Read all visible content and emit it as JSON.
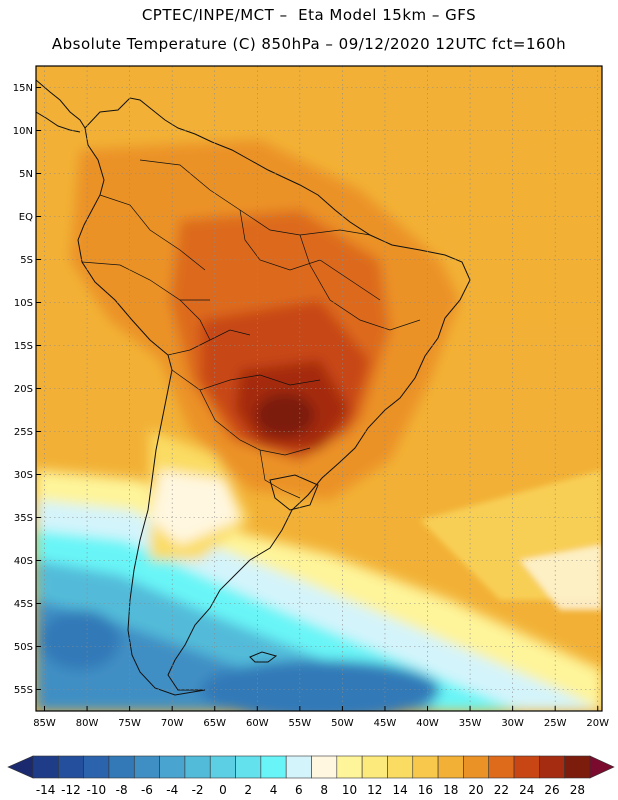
{
  "header": {
    "line1": "CPTEC/INPE/MCT –  Eta Model 15km – GFS",
    "line2": "Absolute Temperature (C) 850hPa – 09/12/2020 12UTC fct=160h"
  },
  "map": {
    "lat_labels": [
      "15N",
      "10N",
      "5N",
      "EQ",
      "5S",
      "10S",
      "15S",
      "20S",
      "25S",
      "30S",
      "35S",
      "40S",
      "45S",
      "50S",
      "55S"
    ],
    "lat_values": [
      15,
      10,
      5,
      0,
      -5,
      -10,
      -15,
      -20,
      -25,
      -30,
      -35,
      -40,
      -45,
      -50,
      -55
    ],
    "lon_labels": [
      "85W",
      "80W",
      "75W",
      "70W",
      "65W",
      "60W",
      "55W",
      "50W",
      "45W",
      "40W",
      "35W",
      "30W",
      "25W",
      "20W"
    ],
    "lon_values": [
      -85,
      -80,
      -75,
      -70,
      -65,
      -60,
      -55,
      -50,
      -45,
      -40,
      -35,
      -30,
      -25,
      -20
    ],
    "lat_range": [
      -57.5,
      17.5
    ],
    "lon_range": [
      -86,
      -19.5
    ]
  },
  "colorbar": {
    "labels": [
      "-14",
      "-12",
      "-10",
      "-8",
      "-6",
      "-4",
      "-2",
      "0",
      "2",
      "4",
      "6",
      "8",
      "10",
      "12",
      "14",
      "16",
      "18",
      "20",
      "22",
      "24",
      "26",
      "28"
    ],
    "colors": [
      "#1f3c88",
      "#234f9c",
      "#2b64ad",
      "#3379b8",
      "#3f8fc4",
      "#49a5cf",
      "#52bbd9",
      "#5dcfe4",
      "#63e2ee",
      "#69f5f7",
      "#d4f4fb",
      "#fff7e0",
      "#fef49a",
      "#fcea7d",
      "#fbdc63",
      "#f7c84b",
      "#f2b136",
      "#eb9226",
      "#dd6b1b",
      "#c84614",
      "#a52c10",
      "#7c1c0d"
    ],
    "under_color": "#1b2a6e",
    "over_color": "#7a0a2e"
  }
}
